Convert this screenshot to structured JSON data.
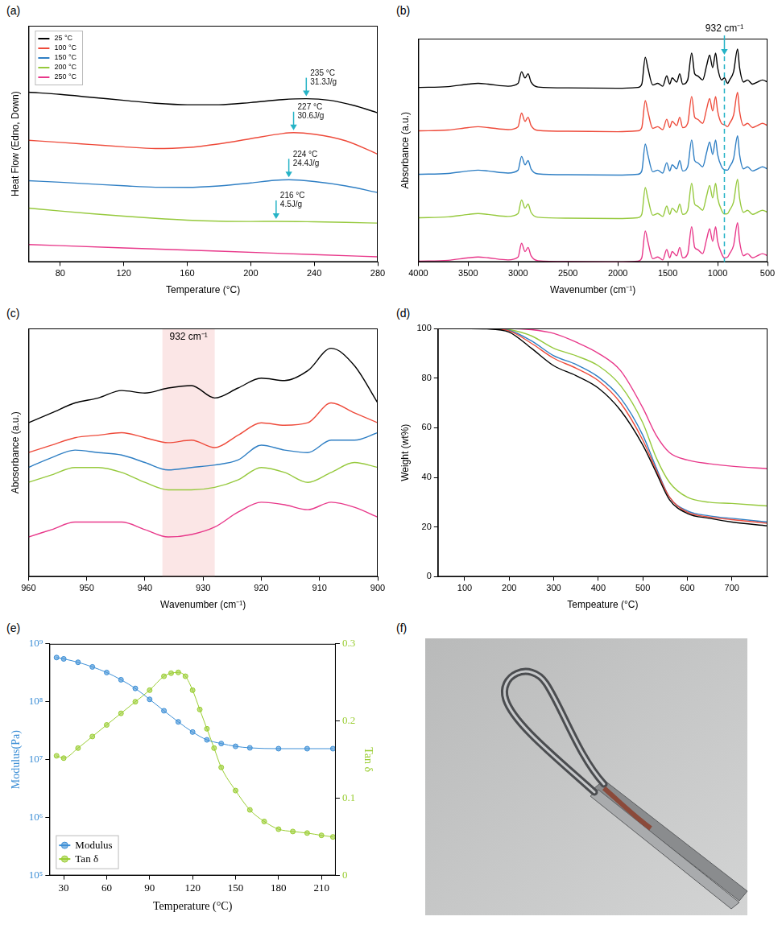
{
  "chart_data": [
    {
      "type": "line",
      "panel_label": "(a)",
      "x_label": "Temperature (°C)",
      "y_label": "Heat Flow (Edno, Down)",
      "xlim": [
        60,
        280
      ],
      "xticks": [
        80,
        120,
        160,
        200,
        240,
        280
      ],
      "ylim": [
        0,
        160
      ],
      "tick_labels": "x",
      "grid": false,
      "legend": "top-left",
      "series": [
        {
          "name": "25 °C",
          "color": "#000000",
          "x": [
            60,
            80,
            100,
            120,
            140,
            160,
            180,
            200,
            220,
            235,
            250,
            265,
            280
          ],
          "values": [
            115,
            113.5,
            111.5,
            109.5,
            107.5,
            106.5,
            106.5,
            108,
            110,
            110.6,
            109.5,
            106,
            101
          ]
        },
        {
          "name": "100 °C",
          "color": "#ee4b3b",
          "x": [
            60,
            80,
            100,
            120,
            140,
            160,
            180,
            200,
            220,
            227,
            240,
            260,
            280
          ],
          "values": [
            82.4,
            81,
            79.5,
            78,
            76.8,
            77.5,
            80,
            83.5,
            87,
            87.6,
            86.5,
            82,
            73
          ]
        },
        {
          "name": "150 °C",
          "color": "#2f7fc4",
          "x": [
            60,
            80,
            100,
            120,
            140,
            160,
            180,
            200,
            215,
            224,
            240,
            260,
            280
          ],
          "values": [
            55,
            54,
            52.8,
            51.6,
            50.6,
            50.5,
            51.5,
            53.5,
            55.3,
            55.7,
            54.5,
            51.5,
            47
          ]
        },
        {
          "name": "200 °C",
          "color": "#96c93d",
          "x": [
            60,
            80,
            100,
            120,
            140,
            160,
            180,
            200,
            216,
            240,
            260,
            280
          ],
          "values": [
            36.5,
            34.5,
            32.7,
            31,
            29.5,
            28.3,
            27.6,
            27.4,
            27.5,
            27.2,
            26.8,
            26.3
          ]
        },
        {
          "name": "250 °C",
          "color": "#e8388a",
          "x": [
            60,
            120,
            180,
            240,
            280
          ],
          "values": [
            11.8,
            9.5,
            7.3,
            5,
            3.5
          ]
        }
      ],
      "annotations": [
        {
          "x": 235,
          "y": 110.6,
          "text": [
            "235 °C",
            "31.3J/g"
          ]
        },
        {
          "x": 227,
          "y": 87.6,
          "text": [
            "227 °C",
            "30.6J/g"
          ]
        },
        {
          "x": 224,
          "y": 55.7,
          "text": [
            "224 °C",
            "24.4J/g"
          ]
        },
        {
          "x": 216,
          "y": 27.5,
          "text": [
            "216 °C",
            "4.5J/g"
          ]
        }
      ]
    },
    {
      "type": "line",
      "panel_label": "(b)",
      "x_label": "Wavenumber (cm⁻¹)",
      "y_label": "Absorbance (a.u.)",
      "xlim": [
        4000,
        500
      ],
      "xticks": [
        4000,
        3500,
        3000,
        2500,
        2000,
        1500,
        1000,
        500
      ],
      "ylim": [
        0,
        5.4
      ],
      "tick_labels": "x",
      "grid": false,
      "x": [
        4000,
        3700,
        3500,
        3400,
        3300,
        3100,
        3000,
        2965,
        2930,
        2900,
        2870,
        2800,
        2500,
        2000,
        1800,
        1760,
        1725,
        1700,
        1650,
        1600,
        1550,
        1510,
        1480,
        1455,
        1410,
        1380,
        1350,
        1300,
        1260,
        1230,
        1200,
        1150,
        1110,
        1080,
        1050,
        1020,
        1000,
        960,
        932,
        900,
        880,
        840,
        800,
        780,
        740,
        700,
        650,
        600,
        550,
        500
      ],
      "series": [
        {
          "color": "#000000",
          "values": [
            4.22,
            4.24,
            4.3,
            4.32,
            4.3,
            4.25,
            4.32,
            4.6,
            4.45,
            4.55,
            4.35,
            4.23,
            4.21,
            4.2,
            4.22,
            4.3,
            4.95,
            4.7,
            4.28,
            4.32,
            4.25,
            4.5,
            4.3,
            4.45,
            4.35,
            4.55,
            4.3,
            4.4,
            5.05,
            4.55,
            4.5,
            4.4,
            4.75,
            5.0,
            4.7,
            5.05,
            4.7,
            4.4,
            4.45,
            4.32,
            4.4,
            4.6,
            5.15,
            4.7,
            4.35,
            4.4,
            4.3,
            4.35,
            4.4,
            4.35
          ]
        },
        {
          "color": "#ee4b3b",
          "values": [
            3.17,
            3.19,
            3.25,
            3.27,
            3.25,
            3.2,
            3.27,
            3.6,
            3.4,
            3.5,
            3.3,
            3.18,
            3.16,
            3.15,
            3.17,
            3.25,
            3.9,
            3.65,
            3.23,
            3.27,
            3.2,
            3.45,
            3.25,
            3.4,
            3.3,
            3.5,
            3.25,
            3.35,
            4.0,
            3.5,
            3.45,
            3.35,
            3.7,
            3.95,
            3.65,
            4.0,
            3.65,
            3.35,
            3.32,
            3.27,
            3.35,
            3.55,
            4.1,
            3.65,
            3.3,
            3.35,
            3.25,
            3.3,
            3.35,
            3.3
          ]
        },
        {
          "color": "#2f7fc4",
          "values": [
            2.12,
            2.14,
            2.2,
            2.22,
            2.2,
            2.15,
            2.22,
            2.55,
            2.35,
            2.45,
            2.25,
            2.13,
            2.11,
            2.1,
            2.12,
            2.2,
            2.85,
            2.6,
            2.18,
            2.22,
            2.15,
            2.4,
            2.2,
            2.35,
            2.25,
            2.45,
            2.2,
            2.3,
            2.95,
            2.45,
            2.4,
            2.3,
            2.65,
            2.9,
            2.6,
            2.95,
            2.6,
            2.3,
            2.23,
            2.22,
            2.3,
            2.5,
            3.05,
            2.6,
            2.25,
            2.3,
            2.2,
            2.25,
            2.3,
            2.25
          ]
        },
        {
          "color": "#96c93d",
          "values": [
            1.07,
            1.09,
            1.15,
            1.17,
            1.15,
            1.1,
            1.17,
            1.5,
            1.3,
            1.4,
            1.2,
            1.08,
            1.06,
            1.05,
            1.07,
            1.15,
            1.8,
            1.55,
            1.13,
            1.17,
            1.1,
            1.35,
            1.15,
            1.3,
            1.2,
            1.4,
            1.15,
            1.25,
            1.9,
            1.4,
            1.35,
            1.25,
            1.6,
            1.85,
            1.55,
            1.9,
            1.55,
            1.25,
            1.16,
            1.17,
            1.25,
            1.45,
            2.0,
            1.55,
            1.2,
            1.25,
            1.15,
            1.2,
            1.25,
            1.2
          ]
        },
        {
          "color": "#e8388a",
          "values": [
            0.02,
            0.04,
            0.1,
            0.12,
            0.1,
            0.05,
            0.12,
            0.45,
            0.25,
            0.35,
            0.15,
            0.03,
            0.01,
            0,
            0.02,
            0.1,
            0.75,
            0.5,
            0.08,
            0.12,
            0.05,
            0.3,
            0.1,
            0.25,
            0.15,
            0.35,
            0.1,
            0.2,
            0.85,
            0.35,
            0.3,
            0.2,
            0.55,
            0.8,
            0.5,
            0.85,
            0.5,
            0.2,
            0.1,
            0.12,
            0.2,
            0.4,
            0.95,
            0.5,
            0.15,
            0.2,
            0.1,
            0.15,
            0.2,
            0.15
          ]
        }
      ],
      "annotations": [
        {
          "x": 932,
          "text": "932 cm⁻¹"
        }
      ]
    },
    {
      "type": "line",
      "panel_label": "(c)",
      "x_label": "Wavenumber (cm⁻¹)",
      "y_label": "Abosorbance (a.u.)",
      "xlim": [
        960,
        900
      ],
      "xticks": [
        960,
        950,
        940,
        930,
        920,
        910,
        900
      ],
      "ylim": [
        0,
        100
      ],
      "tick_labels": "x",
      "grid": false,
      "x": [
        960,
        956,
        952,
        948,
        944,
        940,
        936,
        932,
        928,
        924,
        920,
        916,
        912,
        908,
        904,
        900
      ],
      "series": [
        {
          "color": "#000000",
          "values": [
            62,
            66,
            70,
            72,
            75,
            74,
            76,
            77,
            72,
            76,
            80,
            79,
            83,
            92,
            85,
            70
          ]
        },
        {
          "color": "#ee4b3b",
          "values": [
            50,
            53,
            56,
            57,
            58,
            56,
            54,
            55,
            52,
            57,
            62,
            61,
            62,
            70,
            66,
            62
          ]
        },
        {
          "color": "#2f7fc4",
          "values": [
            44,
            48,
            51,
            50,
            49,
            46,
            43,
            44,
            45,
            47,
            53,
            51,
            50,
            55,
            55,
            58
          ]
        },
        {
          "color": "#96c93d",
          "values": [
            38,
            41,
            44,
            44,
            42,
            38,
            35,
            35,
            36,
            39,
            44,
            42,
            38,
            42,
            46,
            44
          ]
        },
        {
          "color": "#e8388a",
          "values": [
            16,
            19,
            22,
            22,
            22,
            19,
            16,
            17,
            20,
            26,
            30,
            29,
            27,
            30,
            28,
            24
          ]
        }
      ],
      "annotations": [
        {
          "x": [
            928,
            937
          ],
          "text": "932 cm⁻¹"
        }
      ]
    },
    {
      "type": "line",
      "panel_label": "(d)",
      "x_label": "Tempeature (°C)",
      "y_label": "Weight (wt%)",
      "xlim": [
        40,
        780
      ],
      "xticks": [
        100,
        200,
        300,
        400,
        500,
        600,
        700
      ],
      "ylim": [
        0,
        100
      ],
      "yticks": [
        0,
        20,
        40,
        60,
        80,
        100
      ],
      "grid": false,
      "x": [
        40,
        150,
        200,
        250,
        300,
        350,
        400,
        450,
        500,
        530,
        560,
        600,
        650,
        700,
        780
      ],
      "series": [
        {
          "color": "#000000",
          "values": [
            100,
            99.8,
            98.5,
            92,
            85,
            81,
            76,
            67,
            53,
            42,
            31,
            25.5,
            23.5,
            22,
            20.5
          ]
        },
        {
          "color": "#ee4b3b",
          "values": [
            100,
            99.9,
            99,
            94,
            88,
            84,
            79,
            70,
            55,
            43,
            32,
            26,
            24,
            23,
            21.5
          ]
        },
        {
          "color": "#2f7fc4",
          "values": [
            100,
            99.9,
            99.2,
            95,
            89,
            85.5,
            80.5,
            72,
            57,
            44,
            32,
            26.5,
            24.5,
            23.5,
            22
          ]
        },
        {
          "color": "#96c93d",
          "values": [
            100,
            100,
            99.5,
            97,
            92,
            89,
            85,
            77,
            62,
            48,
            38,
            32,
            30,
            29.5,
            28.5
          ]
        },
        {
          "color": "#e8388a",
          "values": [
            100,
            100,
            100,
            99.5,
            98,
            94.5,
            90,
            83,
            68,
            57,
            50,
            47,
            45.5,
            44.5,
            43.5
          ]
        }
      ]
    },
    {
      "type": "line",
      "panel_label": "(e)",
      "x_label": "Temperature (°C)",
      "y_label": "Modulus(Pa)",
      "y2_label": "Tan δ",
      "xlim": [
        20,
        220
      ],
      "xticks": [
        30,
        60,
        90,
        120,
        150,
        180,
        210
      ],
      "log": "y",
      "ylim": [
        100000,
        1000000000
      ],
      "yticks": [
        {
          "value": 100000,
          "label": "10⁵"
        },
        {
          "value": 1000000,
          "label": "10⁶"
        },
        {
          "value": 10000000,
          "label": "10⁷"
        },
        {
          "value": 100000000,
          "label": "10⁸"
        },
        {
          "value": 1000000000,
          "label": "10⁹"
        }
      ],
      "y2lim": [
        0,
        0.3
      ],
      "y2ticks": [
        0,
        0.1,
        0.2,
        0.3
      ],
      "grid": false,
      "legend": "bottom-left",
      "series": [
        {
          "name": "Modulus",
          "color": "#3d8fd6",
          "marker": "circle",
          "x": [
            25,
            30,
            40,
            50,
            60,
            70,
            80,
            90,
            100,
            110,
            120,
            130,
            140,
            150,
            160,
            180,
            200,
            218
          ],
          "values": [
            580000000,
            550000000,
            480000000,
            400000000,
            320000000,
            240000000,
            170000000,
            110000000,
            70000000,
            45000000,
            30000000,
            22000000,
            19000000,
            17000000,
            16000000,
            15500000,
            15500000,
            15500000
          ]
        },
        {
          "name": "Tan δ",
          "color": "#9acd32",
          "marker": "circle",
          "axis": "y2",
          "x": [
            25,
            30,
            40,
            50,
            60,
            70,
            80,
            90,
            100,
            105,
            110,
            115,
            120,
            125,
            130,
            135,
            140,
            150,
            160,
            170,
            180,
            190,
            200,
            210,
            218
          ],
          "values": [
            0.155,
            0.152,
            0.165,
            0.18,
            0.195,
            0.21,
            0.225,
            0.24,
            0.258,
            0.262,
            0.263,
            0.258,
            0.24,
            0.215,
            0.19,
            0.165,
            0.14,
            0.11,
            0.085,
            0.07,
            0.06,
            0.057,
            0.055,
            0.052,
            0.05
          ]
        }
      ]
    }
  ],
  "photo_panel": {
    "panel_label": "(f)"
  }
}
